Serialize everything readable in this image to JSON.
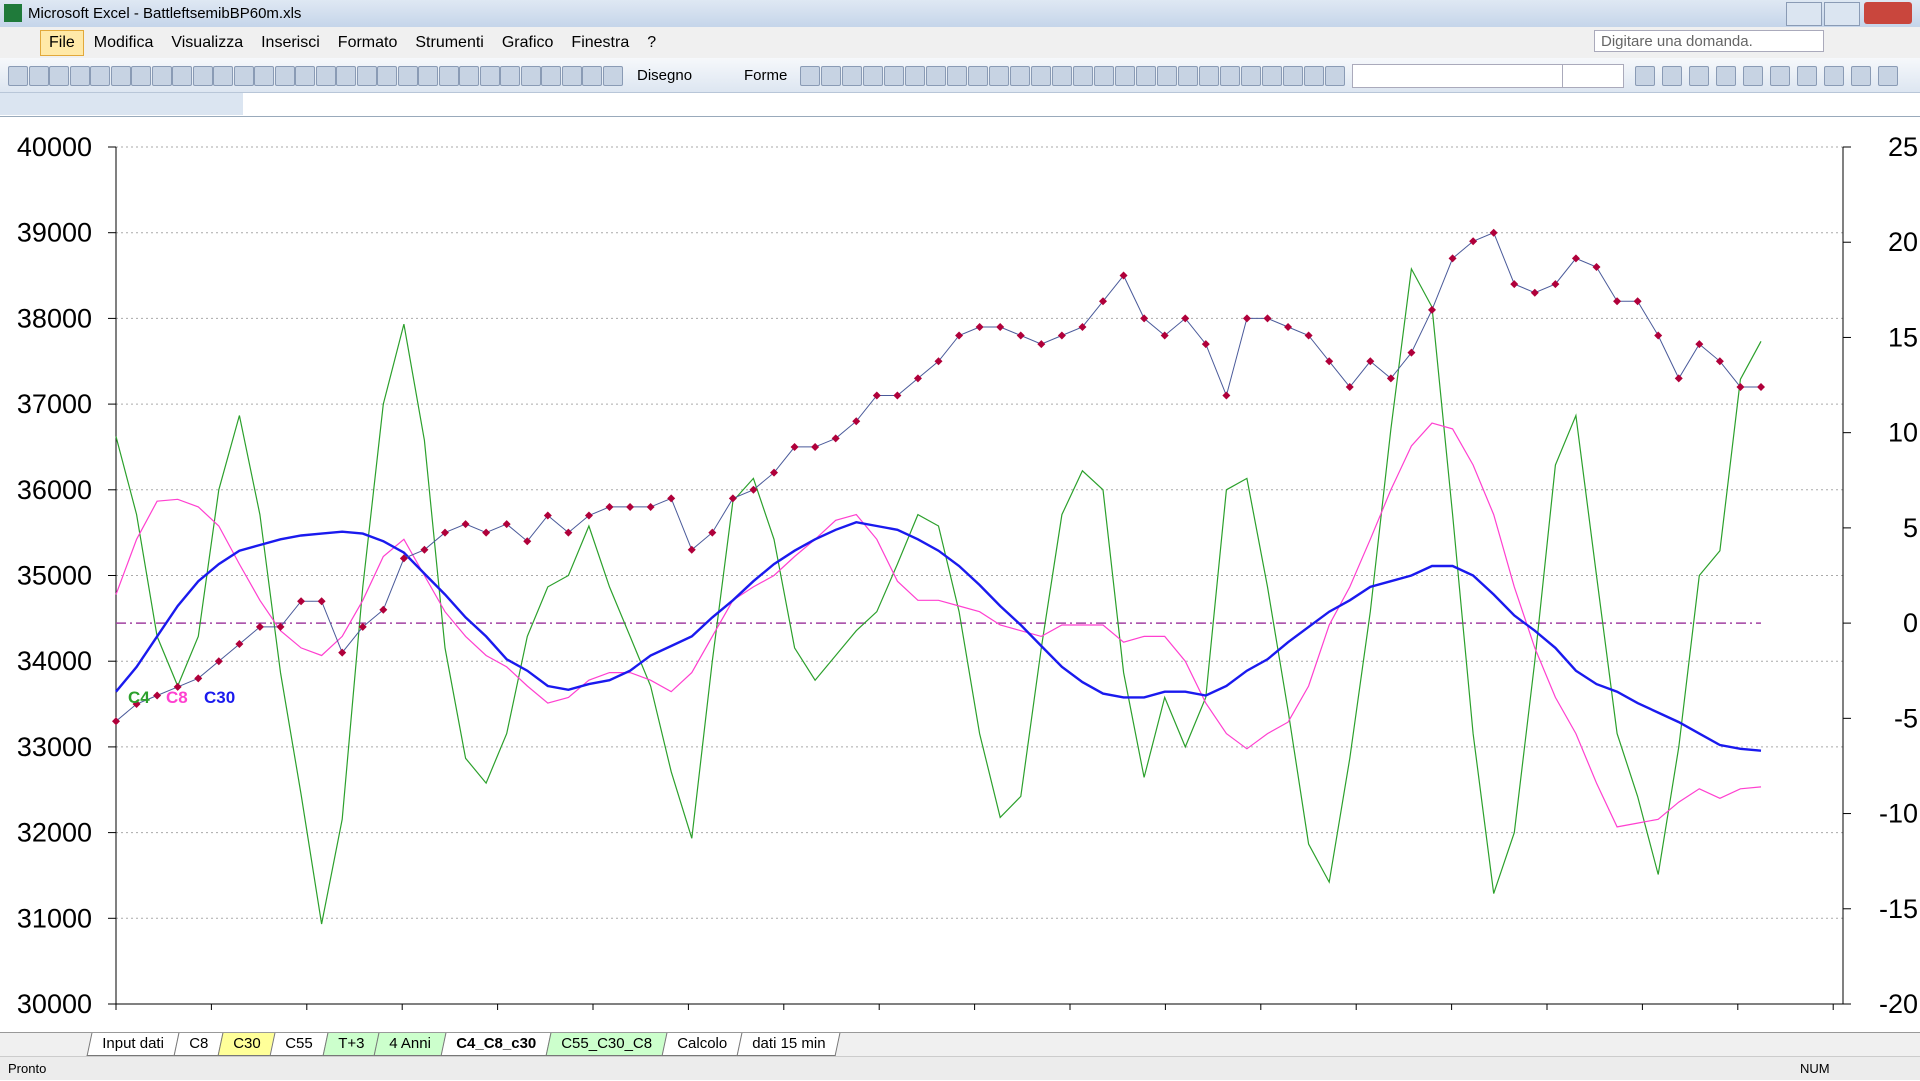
{
  "window": {
    "title": "Microsoft Excel - BattleftsemibBP60m.xls"
  },
  "menu": [
    "File",
    "Modifica",
    "Visualizza",
    "Inserisci",
    "Formato",
    "Strumenti",
    "Grafico",
    "Finestra",
    "?"
  ],
  "help_box": "Digitare una domanda.",
  "toolbar": {
    "drawing": "Disegno",
    "shapes": "Forme"
  },
  "sheet_tabs": [
    {
      "label": "Input dati",
      "color": "#ffffff",
      "active": false
    },
    {
      "label": "C8",
      "color": "#ffffff",
      "active": false
    },
    {
      "label": "C30",
      "color": "#ffff99",
      "active": false
    },
    {
      "label": "C55",
      "color": "#ffffff",
      "active": false
    },
    {
      "label": "T+3",
      "color": "#ccffcc",
      "active": false
    },
    {
      "label": "4 Anni",
      "color": "#ccffcc",
      "active": false
    },
    {
      "label": "C4_C8_c30",
      "color": "#ffffff",
      "active": true
    },
    {
      "label": "C55_C30_C8",
      "color": "#ccffcc",
      "active": false
    },
    {
      "label": "Calcolo",
      "color": "#ffffff",
      "active": false
    },
    {
      "label": "dati 15 min",
      "color": "#ffffff",
      "active": false
    }
  ],
  "status": {
    "left": "Pronto",
    "right": "NUM"
  },
  "chart_data": {
    "type": "line",
    "ylim": [
      30000,
      40000
    ],
    "yticks": [
      30000,
      31000,
      32000,
      33000,
      34000,
      35000,
      36000,
      37000,
      38000,
      39000,
      40000
    ],
    "y2lim": [
      -20,
      25
    ],
    "y2ticks": [
      -20,
      -15,
      -10,
      -5,
      0,
      5,
      10,
      15,
      20,
      25
    ],
    "grid": true,
    "y2_reference_line": {
      "value": 0,
      "color": "#a040a0"
    },
    "series": [
      {
        "color": "#4a5a9a",
        "marker_color": "#b0003a",
        "width": 1,
        "values": [
          33300,
          33500,
          33600,
          33700,
          33800,
          34000,
          34200,
          34400,
          34400,
          34700,
          34700,
          34100,
          34400,
          34600,
          35200,
          35300,
          35500,
          35600,
          35500,
          35600,
          35400,
          35700,
          35500,
          35700,
          35800,
          35800,
          35800,
          35900,
          35300,
          35500,
          35900,
          36000,
          36200,
          36500,
          36500,
          36600,
          36800,
          37100,
          37100,
          37300,
          37500,
          37800,
          37900,
          37900,
          37800,
          37700,
          37800,
          37900,
          38200,
          38500,
          38000,
          37800,
          38000,
          37700,
          37100,
          38000,
          38000,
          37900,
          37800,
          37500,
          37200,
          37500,
          37300,
          37600,
          38100,
          38700,
          38900,
          39000,
          38400,
          38300,
          38400,
          38700,
          38600,
          38200,
          38200,
          37800,
          37300,
          37700,
          37500,
          37200,
          37200
        ]
      },
      {
        "name": "C4",
        "color": "#2ca02c",
        "axis": "y2",
        "width": 1.2,
        "values": [
          9.8,
          5.7,
          -0.7,
          -3.3,
          -0.7,
          7,
          10.9,
          5.7,
          -2.6,
          -9,
          -15.8,
          -10.3,
          1.9,
          11.5,
          15.7,
          9.6,
          -1.3,
          -7.1,
          -8.4,
          -5.8,
          -0.7,
          1.9,
          2.5,
          5.1,
          1.9,
          -0.7,
          -3.3,
          -7.8,
          -11.3,
          -2,
          6.4,
          7.6,
          4.4,
          -1.3,
          -3,
          -1.7,
          -0.4,
          0.6,
          3.1,
          5.7,
          5.1,
          0.6,
          -5.8,
          -10.2,
          -9.1,
          -1.3,
          5.7,
          8,
          7,
          -2.6,
          -8.1,
          -3.9,
          -6.5,
          -3.9,
          7,
          7.6,
          1.9,
          -4.6,
          -11.6,
          -13.6,
          -7.1,
          0.6,
          10.2,
          18.6,
          16.6,
          5.7,
          -5.8,
          -14.2,
          -11,
          -2,
          8.3,
          10.9,
          2.5,
          -5.8,
          -9.1,
          -13.2,
          -6.5,
          2.5,
          3.8,
          12.8,
          14.8
        ]
      },
      {
        "name": "C8",
        "color": "#ff40d0",
        "axis": "y2",
        "width": 1.2,
        "values": [
          1.5,
          4.4,
          6.4,
          6.5,
          6.1,
          5.1,
          3.1,
          1.2,
          -0.4,
          -1.3,
          -1.7,
          -0.7,
          1.2,
          3.5,
          4.4,
          2.5,
          0.6,
          -0.7,
          -1.7,
          -2.3,
          -3.3,
          -4.2,
          -3.9,
          -3,
          -2.6,
          -2.6,
          -3,
          -3.6,
          -2.6,
          -0.7,
          1.2,
          1.9,
          2.5,
          3.5,
          4.4,
          5.4,
          5.7,
          4.4,
          2.2,
          1.2,
          1.2,
          0.9,
          0.6,
          -0.1,
          -0.4,
          -0.7,
          -0.1,
          -0.1,
          -0.1,
          -1,
          -0.7,
          -0.7,
          -2,
          -4.2,
          -5.8,
          -6.6,
          -5.8,
          -5.2,
          -3.3,
          -0.1,
          1.9,
          4.4,
          7,
          9.3,
          10.5,
          10.2,
          8.3,
          5.7,
          1.9,
          -1.3,
          -3.9,
          -5.8,
          -8.4,
          -10.7,
          -10.5,
          -10.3,
          -9.4,
          -8.7,
          -9.2,
          -8.7,
          -8.6
        ]
      },
      {
        "name": "C30",
        "color": "#1a1aee",
        "axis": "y2",
        "width": 2.4,
        "values": [
          -3.6,
          -2.3,
          -0.7,
          0.9,
          2.2,
          3.1,
          3.8,
          4.1,
          4.4,
          4.6,
          4.7,
          4.8,
          4.7,
          4.3,
          3.7,
          2.6,
          1.5,
          0.3,
          -0.7,
          -1.9,
          -2.5,
          -3.3,
          -3.5,
          -3.2,
          -3,
          -2.5,
          -1.7,
          -1.2,
          -0.7,
          0.3,
          1.2,
          2.2,
          3.1,
          3.8,
          4.4,
          4.9,
          5.3,
          5.1,
          4.9,
          4.4,
          3.8,
          3,
          2,
          0.9,
          -0.1,
          -1.2,
          -2.3,
          -3.1,
          -3.7,
          -3.9,
          -3.9,
          -3.6,
          -3.6,
          -3.8,
          -3.3,
          -2.5,
          -1.9,
          -1,
          -0.2,
          0.6,
          1.2,
          1.9,
          2.2,
          2.5,
          3,
          3,
          2.5,
          1.5,
          0.4,
          -0.4,
          -1.3,
          -2.5,
          -3.2,
          -3.6,
          -4.2,
          -4.7,
          -5.2,
          -5.8,
          -6.4,
          -6.6,
          -6.7
        ]
      }
    ]
  }
}
